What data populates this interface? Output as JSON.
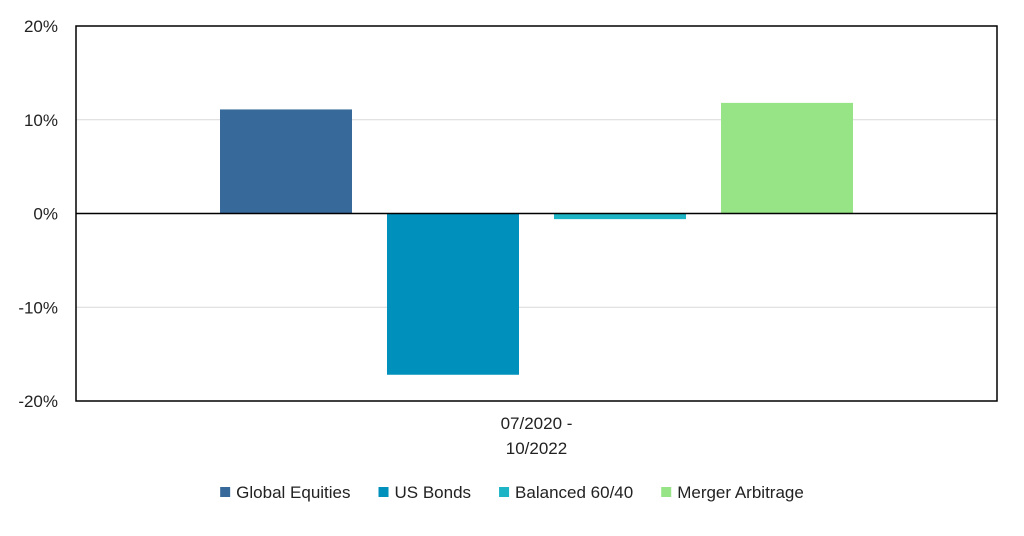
{
  "chart_data": {
    "type": "bar",
    "categories": [
      "07/2020 - 10/2022"
    ],
    "category_lines": [
      "07/2020 -",
      "10/2022"
    ],
    "series": [
      {
        "name": "Global Equities",
        "values": [
          11.1
        ],
        "color": "#376A9A"
      },
      {
        "name": "US Bonds",
        "values": [
          -17.2
        ],
        "color": "#0090BC"
      },
      {
        "name": "Balanced 60/40",
        "values": [
          -0.6
        ],
        "color": "#1DB5C6"
      },
      {
        "name": "Merger Arbitrage",
        "values": [
          11.8
        ],
        "color": "#96E486"
      }
    ],
    "title": "",
    "xlabel": "",
    "ylabel": "",
    "ylim": [
      -20,
      20
    ],
    "yticks": [
      20,
      10,
      0,
      -10,
      -20
    ],
    "ytick_labels": [
      "20%",
      "10%",
      "0%",
      "-10%",
      "-20%"
    ],
    "grid": true,
    "legend_position": "bottom"
  }
}
